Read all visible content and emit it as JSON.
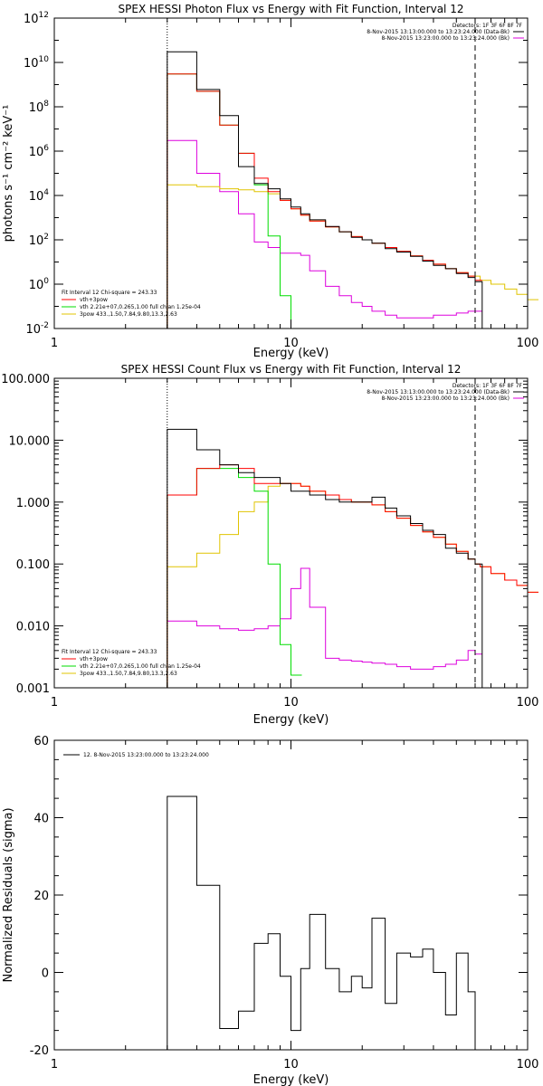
{
  "chart_data": [
    {
      "type": "line",
      "title": "SPEX HESSI Photon Flux vs Energy with Fit Function, Interval 12",
      "xlabel": "Energy (keV)",
      "ylabel": "photons s⁻¹ cm⁻² keV⁻¹",
      "xscale": "log",
      "yscale": "log",
      "xlim": [
        1,
        100
      ],
      "ylim": [
        0.01,
        1000000000000.0
      ],
      "x_ticks": [
        "1",
        "10",
        "100"
      ],
      "y_ticks": [
        {
          "base": "10",
          "exp": "-2"
        },
        {
          "base": "10",
          "exp": "0"
        },
        {
          "base": "10",
          "exp": "2"
        },
        {
          "base": "10",
          "exp": "4"
        },
        {
          "base": "10",
          "exp": "6"
        },
        {
          "base": "10",
          "exp": "8"
        },
        {
          "base": "10",
          "exp": "10"
        },
        {
          "base": "10",
          "exp": "12"
        }
      ],
      "legend": {
        "placement": "bottom-left",
        "header": "Fit Interval 12   Chi-square = 243.33",
        "entries": [
          "vth+3pow",
          "vth 2.21e+07,0.265,1.00  full chian 1.25e-04",
          "3pow 433.,1.50,7.84,9.80,13.3,2.63"
        ]
      },
      "info": {
        "placement": "top-right",
        "lines": [
          "Detectors: 1F 3F 6F 8F 7F",
          "8-Nov-2015 13:13:00.000 to 13:23:24.000 (Data-Bk)",
          "8-Nov-2015 13:23:00.000 to 13:23:24.000 (Bk)"
        ]
      },
      "markers": {
        "dotted_x": 3,
        "dashed_x": 60
      },
      "series": [
        {
          "name": "Data-Bk",
          "color": "#000000",
          "x": [
            3,
            4,
            5,
            6,
            7,
            8,
            9,
            10,
            11,
            12,
            14,
            16,
            18,
            20,
            22,
            25,
            28,
            32,
            36,
            40,
            45,
            50,
            56,
            60
          ],
          "y": [
            30000000000.0,
            600000000.0,
            40000000.0,
            200000.0,
            35000.0,
            20000.0,
            7000.0,
            3000.0,
            1500.0,
            800,
            400,
            230,
            130,
            100,
            70,
            40,
            28,
            18,
            11,
            7,
            5,
            3,
            2,
            1.3
          ]
        },
        {
          "name": "vth+3pow",
          "color": "#ff0000",
          "x": [
            3,
            4,
            5,
            6,
            7,
            8,
            9,
            10,
            11,
            12,
            14,
            16,
            18,
            20,
            22,
            25,
            28,
            32,
            36,
            40,
            45,
            50,
            56,
            60
          ],
          "y": [
            3000000000.0,
            500000000.0,
            15000000.0,
            800000.0,
            60000.0,
            15000.0,
            6000.0,
            2500.0,
            1300.0,
            700,
            380,
            230,
            140,
            100,
            70,
            45,
            30,
            19,
            12,
            8,
            5,
            3.3,
            2.3,
            1.5
          ]
        },
        {
          "name": "vth",
          "color": "#00dd00",
          "x": [
            3,
            4,
            5,
            6,
            7,
            8,
            9,
            10
          ],
          "y": [
            3000000000.0,
            500000000.0,
            15000000.0,
            800000.0,
            30000.0,
            150,
            0.3,
            0.01
          ]
        },
        {
          "name": "3pow",
          "color": "#e0c400",
          "x": [
            3,
            4,
            5,
            6,
            7,
            8,
            9,
            10,
            11,
            12,
            14,
            16,
            18,
            20,
            22,
            25,
            28,
            32,
            36,
            40,
            45,
            50,
            56,
            63,
            70,
            80,
            90,
            100
          ],
          "y": [
            30000.0,
            25000.0,
            20000.0,
            18000.0,
            15000.0,
            12000.0,
            6000.0,
            2500.0,
            1300.0,
            700,
            380,
            230,
            140,
            100,
            70,
            45,
            30,
            19,
            12,
            8,
            5,
            3.3,
            2.3,
            1.5,
            1,
            0.6,
            0.35,
            0.2
          ]
        },
        {
          "name": "Bk",
          "color": "#dd00dd",
          "x": [
            3,
            4,
            5,
            6,
            7,
            8,
            9,
            10,
            11,
            12,
            14,
            16,
            18,
            20,
            22,
            25,
            28,
            32,
            36,
            40,
            45,
            50,
            56,
            60
          ],
          "y": [
            3000000.0,
            100000.0,
            15000.0,
            1500.0,
            80,
            45,
            25,
            25,
            20,
            4,
            0.8,
            0.3,
            0.15,
            0.1,
            0.06,
            0.04,
            0.03,
            0.03,
            0.03,
            0.04,
            0.04,
            0.05,
            0.06,
            0.06
          ]
        }
      ]
    },
    {
      "type": "line",
      "title": "SPEX HESSI Count Flux vs Energy with Fit Function, Interval 12",
      "xlabel": "Energy (keV)",
      "ylabel": "",
      "xscale": "log",
      "yscale": "log",
      "xlim": [
        1,
        100
      ],
      "ylim": [
        0.001,
        100
      ],
      "x_ticks": [
        "1",
        "10",
        "100"
      ],
      "y_ticks": [
        "0.001",
        "0.010",
        "0.100",
        "1.000",
        "10.000",
        "100.000"
      ],
      "legend": {
        "placement": "bottom-left",
        "header": "Fit Interval 12   Chi-square = 243.33",
        "entries": [
          "vth+3pow",
          "vth 2.21e+07,0.265,1.00  full chian 1.25e-04",
          "3pow 433.,1.50,7.84,9.80,13.3,2.63"
        ]
      },
      "info": {
        "placement": "top-right",
        "lines": [
          "Detectors: 1F 3F 6F 8F 7F",
          "8-Nov-2015 13:13:00.000 to 13:23:24.000 (Data-Bk)",
          "8-Nov-2015 13:23:00.000 to 13:23:24.000 (Bk)"
        ]
      },
      "markers": {
        "dotted_x": 3,
        "dashed_x": 60
      },
      "series": [
        {
          "name": "Data-Bk",
          "color": "#000000",
          "x": [
            3,
            4,
            5,
            6,
            7,
            8,
            9,
            10,
            11,
            12,
            14,
            16,
            18,
            20,
            22,
            25,
            28,
            32,
            36,
            40,
            45,
            50,
            56,
            60
          ],
          "y": [
            15,
            7,
            4,
            3,
            2.5,
            2.5,
            2,
            1.5,
            1.5,
            1.3,
            1.1,
            1,
            1,
            1,
            1.2,
            0.8,
            0.6,
            0.45,
            0.35,
            0.3,
            0.18,
            0.15,
            0.12,
            0.1
          ]
        },
        {
          "name": "vth+3pow",
          "color": "#ff0000",
          "x": [
            3,
            4,
            5,
            6,
            7,
            8,
            9,
            10,
            11,
            12,
            14,
            16,
            18,
            20,
            22,
            25,
            28,
            32,
            36,
            40,
            45,
            50,
            56,
            60,
            63,
            70,
            80,
            90,
            100
          ],
          "y": [
            1.3,
            3.5,
            4,
            3.5,
            2,
            2,
            2,
            2,
            1.8,
            1.5,
            1.3,
            1.1,
            1,
            1,
            0.9,
            0.7,
            0.55,
            0.42,
            0.33,
            0.27,
            0.21,
            0.16,
            0.12,
            0.1,
            0.09,
            0.07,
            0.055,
            0.045,
            0.035
          ]
        },
        {
          "name": "vth",
          "color": "#00dd00",
          "x": [
            3,
            4,
            5,
            6,
            7,
            8,
            9,
            10
          ],
          "y": [
            1.3,
            3.5,
            3.5,
            2.5,
            1.5,
            0.1,
            0.005,
            0.0016
          ]
        },
        {
          "name": "3pow",
          "color": "#e0c400",
          "x": [
            3,
            4,
            5,
            6,
            7,
            8,
            9,
            10,
            11,
            12,
            14,
            16,
            18,
            20,
            22,
            25,
            28,
            32,
            36,
            40,
            45,
            50,
            56,
            60,
            63,
            70,
            80,
            90,
            100
          ],
          "y": [
            0.09,
            0.15,
            0.3,
            0.7,
            1,
            1.8,
            2,
            2,
            1.8,
            1.5,
            1.3,
            1.1,
            1,
            1,
            0.9,
            0.7,
            0.55,
            0.42,
            0.33,
            0.27,
            0.21,
            0.16,
            0.12,
            0.1,
            0.09,
            0.07,
            0.055,
            0.045,
            0.035
          ]
        },
        {
          "name": "Bk",
          "color": "#dd00dd",
          "x": [
            3,
            4,
            5,
            6,
            7,
            8,
            9,
            10,
            11,
            12,
            14,
            16,
            18,
            20,
            22,
            25,
            28,
            32,
            36,
            40,
            45,
            50,
            56,
            60
          ],
          "y": [
            0.012,
            0.01,
            0.009,
            0.0085,
            0.009,
            0.01,
            0.013,
            0.04,
            0.085,
            0.02,
            0.003,
            0.0028,
            0.0027,
            0.0026,
            0.0025,
            0.0024,
            0.0022,
            0.002,
            0.002,
            0.0022,
            0.0024,
            0.0028,
            0.004,
            0.0035
          ]
        }
      ]
    },
    {
      "type": "line",
      "title": "",
      "xlabel": "Energy (keV)",
      "ylabel": "Normalized Residuals (sigma)",
      "xscale": "log",
      "yscale": "linear",
      "xlim": [
        1,
        100
      ],
      "ylim": [
        -20,
        60
      ],
      "x_ticks": [
        "1",
        "10",
        "100"
      ],
      "y_ticks": [
        "-20",
        "0",
        "20",
        "40",
        "60"
      ],
      "legend": {
        "placement": "top-left",
        "entries": [
          "12.  8-Nov-2015 13:23:00.000 to 13:23:24.000"
        ]
      },
      "series": [
        {
          "name": "12.  8-Nov-2015 13:23:00.000 to 13:23:24.000",
          "color": "#000000",
          "x": [
            3,
            4,
            5,
            6,
            7,
            8,
            9,
            10,
            11,
            12,
            14,
            16,
            18,
            20,
            22,
            25,
            28,
            32,
            36,
            40,
            45,
            50,
            56,
            60
          ],
          "y": [
            45.5,
            22.5,
            -14.5,
            -10,
            7.5,
            10,
            -1,
            -15,
            1,
            15,
            1,
            -5,
            -1,
            -4,
            14,
            -8,
            5,
            4,
            6,
            0,
            -11,
            5,
            -5,
            -20
          ]
        }
      ]
    }
  ]
}
